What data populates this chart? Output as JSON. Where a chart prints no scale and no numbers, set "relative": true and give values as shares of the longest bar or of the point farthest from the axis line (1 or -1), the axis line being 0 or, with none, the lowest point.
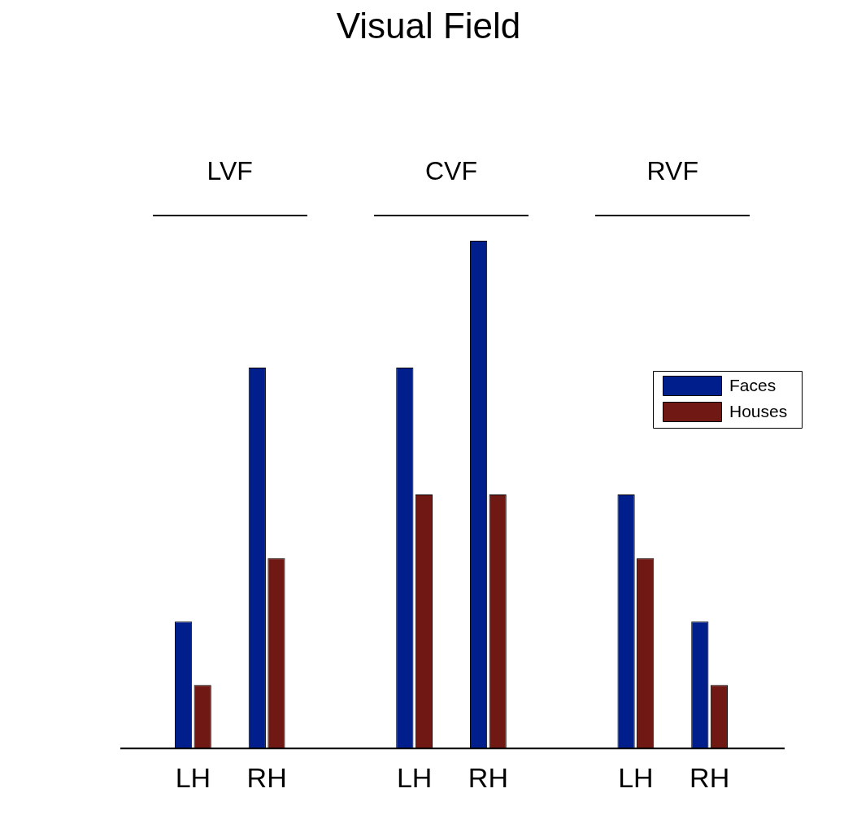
{
  "chart_data": {
    "type": "bar",
    "title": "Visual Field",
    "relative": true,
    "categories": [
      "LH",
      "RH",
      null,
      "LH",
      "RH",
      null,
      "LH",
      "RH"
    ],
    "series": [
      {
        "name": "Faces",
        "color": "#001e8c",
        "values": [
          0.25,
          0.75,
          null,
          0.75,
          1,
          null,
          0.5,
          0.25
        ]
      },
      {
        "name": "Houses",
        "color": "#701814",
        "values": [
          0.125,
          0.375,
          null,
          0.5,
          0.5,
          null,
          0.375,
          0.125
        ]
      }
    ],
    "annotations": [
      "LVF",
      "CVF",
      "RVF"
    ],
    "legend": "top right",
    "grid": false
  }
}
